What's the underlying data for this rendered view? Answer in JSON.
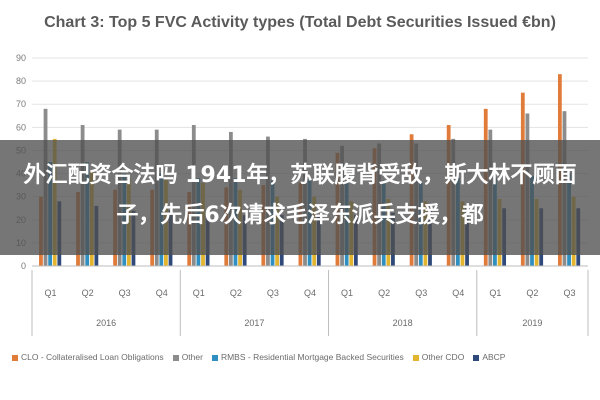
{
  "title": "Chart 3: Top 5 FVC Activity types (Total Debt Securities Issued €bn)",
  "overlay_text": "外汇配资合法吗 1941年，苏联腹背受敌，斯大林不顾面子，先后6次请求毛泽东派兵支援，都",
  "chart_data": {
    "type": "bar",
    "ylim": [
      0,
      90
    ],
    "yticks": [
      "0",
      "10",
      "20",
      "30",
      "40",
      "50",
      "60",
      "70",
      "80",
      "90"
    ],
    "categories": [
      "Q1",
      "Q2",
      "Q3",
      "Q4",
      "Q1",
      "Q2",
      "Q3",
      "Q4",
      "Q1",
      "Q2",
      "Q3",
      "Q4",
      "Q1",
      "Q2",
      "Q3"
    ],
    "years": [
      {
        "label": "2016",
        "count": 4
      },
      {
        "label": "2017",
        "count": 4
      },
      {
        "label": "2018",
        "count": 4
      },
      {
        "label": "2019",
        "count": 3
      }
    ],
    "grid": true,
    "legend_position": "bottom",
    "series": [
      {
        "name": "CLO - Collateralised Loan Obligations",
        "color": "#e07b39",
        "values": [
          30,
          32,
          33,
          33,
          32,
          34,
          35,
          36,
          49,
          51,
          57,
          61,
          68,
          75,
          83
        ]
      },
      {
        "name": "Other",
        "color": "#8c8c8c",
        "values": [
          68,
          61,
          59,
          59,
          61,
          58,
          56,
          55,
          52,
          53,
          53,
          55,
          59,
          66,
          67
        ]
      },
      {
        "name": "RMBS - Residential Mortgage Backed Securities",
        "color": "#2e8fc0",
        "values": [
          45,
          45,
          40,
          40,
          38,
          38,
          37,
          37,
          36,
          37,
          36,
          38,
          38,
          39,
          40
        ]
      },
      {
        "name": "Other CDO",
        "color": "#e3b52f",
        "values": [
          55,
          41,
          38,
          38,
          36,
          33,
          30,
          30,
          28,
          29,
          28,
          28,
          29,
          29,
          30
        ]
      },
      {
        "name": "ABCP",
        "color": "#2f4a7a",
        "values": [
          28,
          26,
          24,
          24,
          23,
          22,
          22,
          22,
          22,
          23,
          24,
          25,
          25,
          25,
          25
        ]
      }
    ]
  }
}
